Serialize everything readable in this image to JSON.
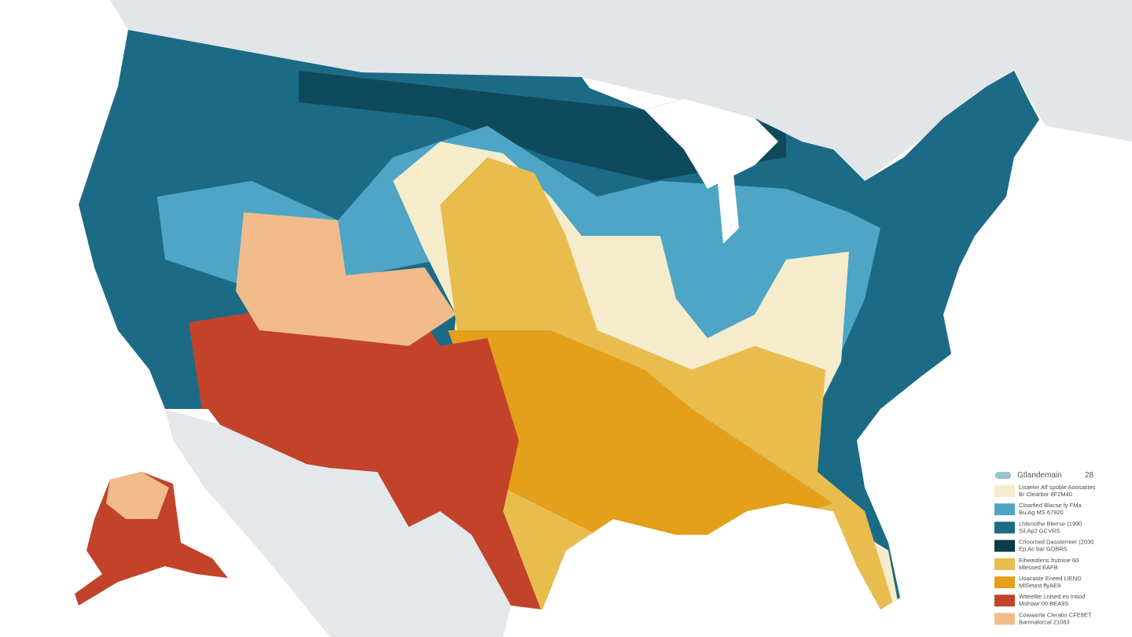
{
  "legend": {
    "title": "Gtlandemain",
    "number": "28",
    "items": [
      {
        "line1": "Lisaeler Alf spoble Aoosatites",
        "line2": "Br Clearbor 8F2M40",
        "color": "#f4eccb"
      },
      {
        "line1": "Cloarfied Blacse fy FMa",
        "line2": "Bu,Ag MS 67920",
        "color": "#4ea5c6"
      },
      {
        "line1": "Lhtenothe Blerrse (1990",
        "line2": "Sil,Ap2 GCVRS",
        "color": "#1c6b86"
      },
      {
        "line1": "Crloorned Dassterreer (2030",
        "line2": "Ep,Ac bar GDBRS",
        "color": "#0c3b4a"
      },
      {
        "line1": "Eiheastlens frutnine 60",
        "line2": "Mlessed EAFB",
        "color": "#e8bd4e"
      },
      {
        "line1": "Uoacaste Eneed LIEND",
        "line2": "MlSetast ffyAE9",
        "color": "#e4a01a"
      },
      {
        "line1": "Wtteelite Lnised eo Intiod",
        "line2": "Msfrowr 00 BEA9S",
        "color": "#c2432a"
      },
      {
        "line1": "Cowaante Cleratio CFE8ET",
        "line2": "Bamnalorcal 21083",
        "color": "#f1bb8c"
      }
    ]
  }
}
